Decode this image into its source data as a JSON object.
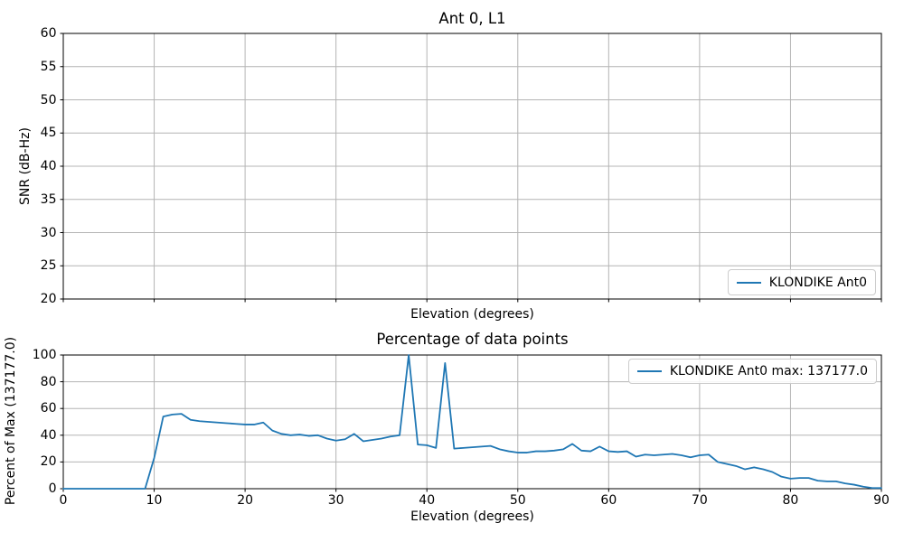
{
  "figure": {
    "background": "#ffffff"
  },
  "colors": {
    "line": "#1f77b4",
    "grid": "#b4b4b4",
    "spine": "#000000",
    "legend_border": "#cccccc",
    "text": "#000000"
  },
  "chart_data": [
    {
      "type": "line",
      "title": "Ant 0, L1",
      "xlabel": "Elevation (degrees)",
      "ylabel": "SNR (dB-Hz)",
      "xlim": [
        0,
        90
      ],
      "ylim": [
        20,
        60
      ],
      "xticks": [
        0,
        10,
        20,
        30,
        40,
        50,
        60,
        70,
        80,
        90
      ],
      "yticks": [
        20,
        25,
        30,
        35,
        40,
        45,
        50,
        55,
        60
      ],
      "show_xtick_labels": false,
      "grid": true,
      "legend": {
        "position": "lower right",
        "entries": [
          {
            "label": "KLONDIKE Ant0",
            "color": "#1f77b4"
          }
        ]
      },
      "series": []
    },
    {
      "type": "line",
      "title": "Percentage of data points",
      "xlabel": "Elevation (degrees)",
      "ylabel": "Percent of Max (137177.0)",
      "xlim": [
        0,
        90
      ],
      "ylim": [
        0,
        100
      ],
      "xticks": [
        0,
        10,
        20,
        30,
        40,
        50,
        60,
        70,
        80,
        90
      ],
      "yticks": [
        0,
        20,
        40,
        60,
        80,
        100
      ],
      "show_xtick_labels": true,
      "grid": true,
      "legend": {
        "position": "upper right",
        "entries": [
          {
            "label": "KLONDIKE Ant0 max: 137177.0",
            "color": "#1f77b4"
          }
        ]
      },
      "max_value": "137177.0",
      "series": [
        {
          "name": "KLONDIKE Ant0",
          "color": "#1f77b4",
          "x": [
            0,
            1,
            2,
            3,
            4,
            5,
            6,
            7,
            8,
            9,
            10,
            11,
            12,
            13,
            14,
            15,
            16,
            17,
            18,
            19,
            20,
            21,
            22,
            23,
            24,
            25,
            26,
            27,
            28,
            29,
            30,
            31,
            32,
            33,
            34,
            35,
            36,
            37,
            38,
            39,
            40,
            41,
            42,
            43,
            44,
            45,
            46,
            47,
            48,
            49,
            50,
            51,
            52,
            53,
            54,
            55,
            56,
            57,
            58,
            59,
            60,
            61,
            62,
            63,
            64,
            65,
            66,
            67,
            68,
            69,
            70,
            71,
            72,
            73,
            74,
            75,
            76,
            77,
            78,
            79,
            80,
            81,
            82,
            83,
            84,
            85,
            86,
            87,
            88,
            89,
            90
          ],
          "y": [
            0,
            0,
            0,
            0,
            0,
            0,
            0,
            0,
            0,
            0,
            23,
            54,
            55.5,
            56,
            51.5,
            50.5,
            50,
            49.5,
            49,
            48.5,
            48,
            48,
            49.5,
            43.5,
            41,
            40,
            40.5,
            39.5,
            40,
            37.5,
            36,
            37,
            41,
            35.5,
            36.5,
            37.5,
            39,
            40,
            100,
            33,
            32.5,
            30.5,
            94,
            30,
            30.5,
            31,
            31.5,
            32,
            29.5,
            28,
            27,
            27,
            28,
            28,
            28.5,
            29.5,
            33.5,
            28.5,
            28,
            31.5,
            28,
            27.5,
            28,
            24,
            25.5,
            25,
            25.5,
            26,
            25,
            23.5,
            25,
            25.5,
            20,
            18.5,
            17,
            14.5,
            16,
            14.5,
            12.5,
            9,
            7.5,
            8,
            8,
            6,
            5.5,
            5.5,
            4,
            3,
            1.5,
            0.5,
            0.5
          ]
        }
      ]
    }
  ]
}
